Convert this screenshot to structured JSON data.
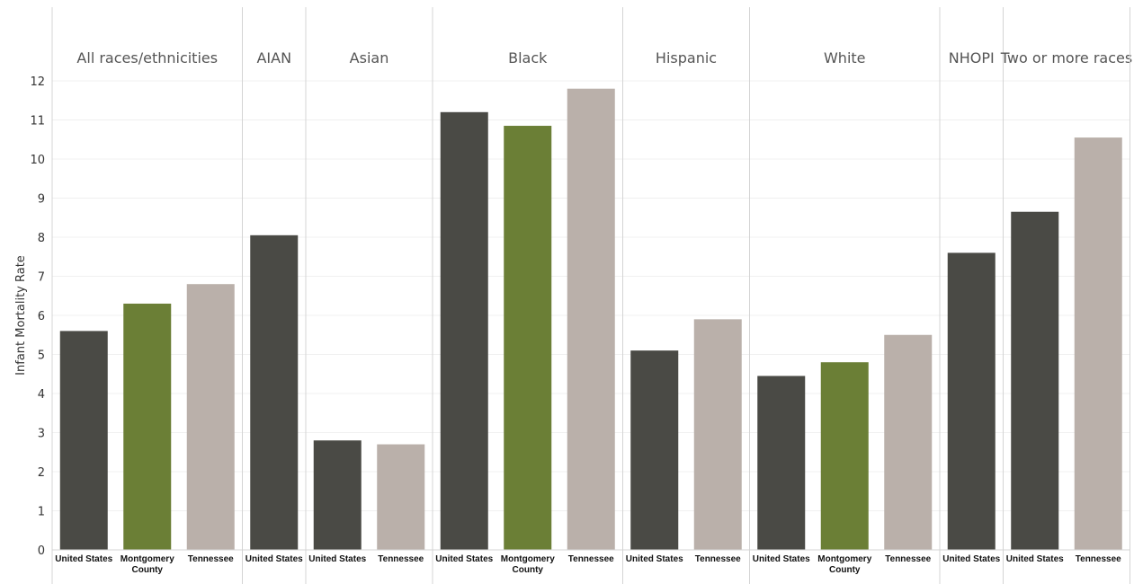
{
  "chart_data": {
    "type": "bar",
    "ylabel": "Infant Mortality Rate",
    "ylim": [
      0,
      12
    ],
    "yticks": [
      0,
      1,
      2,
      3,
      4,
      5,
      6,
      7,
      8,
      9,
      10,
      11,
      12
    ],
    "grid": true,
    "colors": {
      "United States": "#4a4a45",
      "Montgomery County": "#6b7f36",
      "Tennessee": "#bab0aa"
    },
    "groups": [
      {
        "name": "All races/ethnicities",
        "bars": [
          {
            "label": "United States",
            "value": 5.6
          },
          {
            "label": "Montgomery County",
            "value": 6.3
          },
          {
            "label": "Tennessee",
            "value": 6.8
          }
        ]
      },
      {
        "name": "AIAN",
        "bars": [
          {
            "label": "United States",
            "value": 8.05
          }
        ]
      },
      {
        "name": "Asian",
        "bars": [
          {
            "label": "United States",
            "value": 2.8
          },
          {
            "label": "Tennessee",
            "value": 2.7
          }
        ]
      },
      {
        "name": "Black",
        "bars": [
          {
            "label": "United States",
            "value": 11.2
          },
          {
            "label": "Montgomery County",
            "value": 10.85
          },
          {
            "label": "Tennessee",
            "value": 11.8
          }
        ]
      },
      {
        "name": "Hispanic",
        "bars": [
          {
            "label": "United States",
            "value": 5.1
          },
          {
            "label": "Tennessee",
            "value": 5.9
          }
        ]
      },
      {
        "name": "White",
        "bars": [
          {
            "label": "United States",
            "value": 4.45
          },
          {
            "label": "Montgomery County",
            "value": 4.8
          },
          {
            "label": "Tennessee",
            "value": 5.5
          }
        ]
      },
      {
        "name": "NHOPI",
        "bars": [
          {
            "label": "United States",
            "value": 7.6
          }
        ]
      },
      {
        "name": "Two or more races",
        "bars": [
          {
            "label": "United States",
            "value": 8.65
          },
          {
            "label": "Tennessee",
            "value": 10.55
          }
        ]
      }
    ]
  }
}
